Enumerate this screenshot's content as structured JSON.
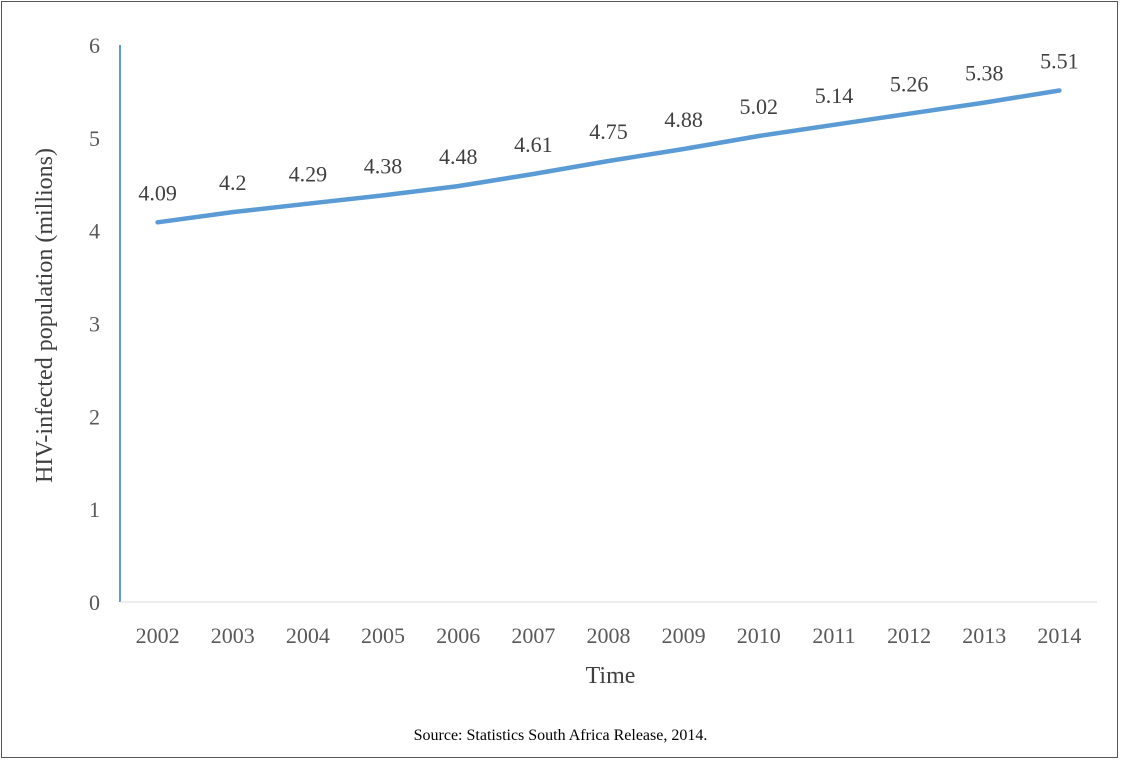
{
  "chart_data": {
    "type": "line",
    "categories": [
      "2002",
      "2003",
      "2004",
      "2005",
      "2006",
      "2007",
      "2008",
      "2009",
      "2010",
      "2011",
      "2012",
      "2013",
      "2014"
    ],
    "values": [
      4.09,
      4.2,
      4.29,
      4.38,
      4.48,
      4.61,
      4.75,
      4.88,
      5.02,
      5.14,
      5.26,
      5.38,
      5.51
    ],
    "data_labels": [
      "4.09",
      "4.2",
      "4.29",
      "4.38",
      "4.48",
      "4.61",
      "4.75",
      "4.88",
      "5.02",
      "5.14",
      "5.26",
      "5.38",
      "5.51"
    ],
    "xlabel": "Time",
    "ylabel": "HIV-infected population  (millions)",
    "ylim": [
      0,
      6
    ],
    "yticks": [
      "0",
      "1",
      "2",
      "3",
      "4",
      "5",
      "6"
    ],
    "grid": false,
    "line_color": "#5b9bd5",
    "axis_color": "#5b9bd5"
  },
  "source": "Source: Statistics South Africa Release, 2014."
}
